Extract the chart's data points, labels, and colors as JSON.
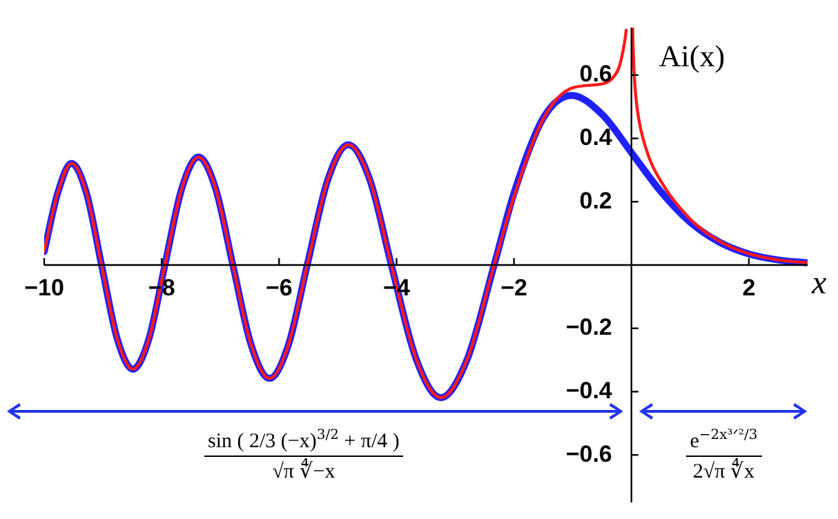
{
  "chart_data": {
    "type": "line",
    "xlabel": "x",
    "ylabel": "Ai(x)",
    "xlim": [
      -10,
      3
    ],
    "ylim": [
      -0.75,
      0.75
    ],
    "xticks": [
      {
        "value": -10,
        "label": "−10"
      },
      {
        "value": -8,
        "label": "−8"
      },
      {
        "value": -6,
        "label": "−6"
      },
      {
        "value": -4,
        "label": "−4"
      },
      {
        "value": -2,
        "label": "−2"
      },
      2
    ],
    "yticks": [
      {
        "value": -0.6,
        "label": "−0.6"
      },
      {
        "value": -0.4,
        "label": "−0.4"
      },
      {
        "value": -0.2,
        "label": "−0.2"
      },
      0.2,
      0.4,
      0.6
    ],
    "grid": false,
    "legend": false,
    "marker": "none",
    "line_style": "solid",
    "annotations": [
      "sin ( 2/3 (−x)$^{3/2}$ + π/4 )",
      "√π ∜−x",
      "e$^{−2x³ᐟ²/3}$",
      "2√π ∜x"
    ],
    "series": [
      {
        "color": "#2020ff",
        "x": [
          -10,
          -9.77,
          -9.535,
          -9.279,
          -9.023,
          -8.756,
          -8.488,
          -8.216,
          -7.944,
          -7.658,
          -7.372,
          -7.08,
          -6.787,
          -6.475,
          -6.163,
          -5.842,
          -5.521,
          -5.171,
          -4.82,
          -4.454,
          -4.088,
          -3.668,
          -3.248,
          -2.793,
          -2.338,
          -2,
          -1.5,
          -1.019,
          -0.5,
          0,
          0.5,
          1,
          1.5,
          2,
          2.5,
          3
        ],
        "values": [
          0.042,
          0.227,
          0.321,
          0.227,
          0,
          -0.233,
          -0.329,
          -0.233,
          0,
          0.241,
          0.341,
          0.241,
          0,
          -0.253,
          -0.358,
          -0.253,
          0,
          0.269,
          0.38,
          0.269,
          0,
          -0.296,
          -0.419,
          -0.296,
          0,
          0.227,
          0.465,
          0.536,
          0.476,
          0.355,
          0.232,
          0.135,
          0.072,
          0.035,
          0.016,
          0.007
        ]
      },
      {
        "color": "#ff1a1a",
        "x": [
          -10,
          -9.77,
          -9.535,
          -9.279,
          -9.023,
          -8.756,
          -8.488,
          -8.216,
          -7.944,
          -7.658,
          -7.372,
          -7.08,
          -6.787,
          -6.475,
          -6.163,
          -5.842,
          -5.521,
          -5.171,
          -4.82,
          -4.454,
          -4.088,
          -3.668,
          -3.248,
          -2.793,
          -2.338,
          -2,
          -1.5,
          -1,
          -0.5,
          -0.3,
          -0.2,
          -0.1,
          -0.09
        ],
        "values": [
          0.042,
          0.227,
          0.321,
          0.227,
          0,
          -0.233,
          -0.329,
          -0.233,
          0,
          0.241,
          0.341,
          0.241,
          0,
          -0.253,
          -0.358,
          -0.253,
          0,
          0.269,
          0.38,
          0.269,
          0,
          -0.296,
          -0.419,
          -0.296,
          0,
          0.216,
          0.462,
          0.56,
          0.572,
          0.595,
          0.631,
          0.725,
          0.742
        ]
      },
      {
        "color": "#ff1a1a",
        "x": [
          0.02,
          0.025,
          0.05,
          0.1,
          0.25,
          0.5,
          1,
          1.5,
          2,
          2.5,
          3
        ],
        "values": [
          0.749,
          0.707,
          0.592,
          0.491,
          0.367,
          0.265,
          0.145,
          0.075,
          0.036,
          0.016,
          0.007
        ]
      }
    ]
  }
}
